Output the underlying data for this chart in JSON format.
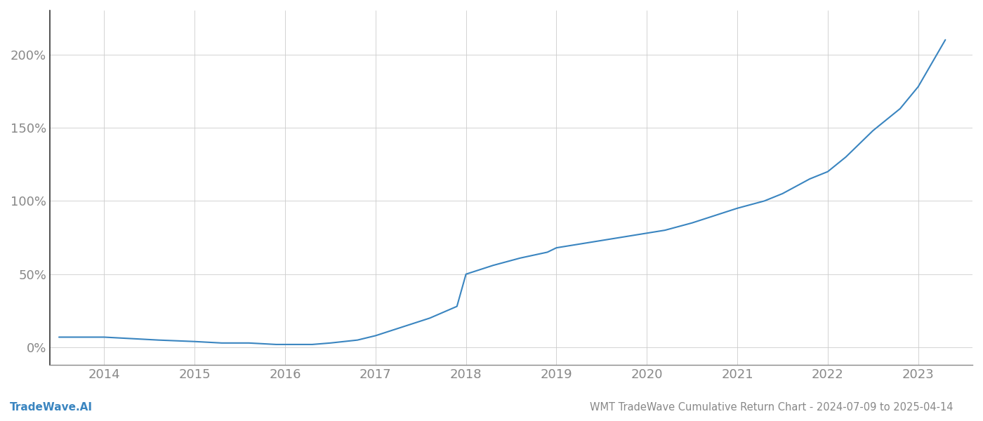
{
  "title": "WMT TradeWave Cumulative Return Chart - 2024-07-09 to 2025-04-14",
  "watermark": "TradeWave.AI",
  "line_color": "#3a85c0",
  "background_color": "#ffffff",
  "grid_color": "#cccccc",
  "text_color": "#888888",
  "x_years": [
    2014,
    2015,
    2016,
    2017,
    2018,
    2019,
    2020,
    2021,
    2022,
    2023
  ],
  "y_ticks": [
    0,
    50,
    100,
    150,
    200
  ],
  "ylim": [
    -12,
    230
  ],
  "xlim": [
    2013.4,
    2023.6
  ],
  "data_x": [
    2013.5,
    2013.8,
    2014.0,
    2014.3,
    2014.6,
    2015.0,
    2015.3,
    2015.6,
    2015.9,
    2016.0,
    2016.1,
    2016.3,
    2016.5,
    2016.8,
    2017.0,
    2017.3,
    2017.6,
    2017.9,
    2018.0,
    2018.3,
    2018.6,
    2018.9,
    2019.0,
    2019.2,
    2019.5,
    2019.8,
    2020.0,
    2020.2,
    2020.5,
    2020.8,
    2021.0,
    2021.3,
    2021.5,
    2021.8,
    2022.0,
    2022.2,
    2022.5,
    2022.8,
    2023.0,
    2023.3
  ],
  "data_y": [
    7,
    7,
    7,
    6,
    5,
    4,
    3,
    3,
    2,
    2,
    2,
    2,
    3,
    5,
    8,
    14,
    20,
    28,
    50,
    56,
    61,
    65,
    68,
    70,
    73,
    76,
    78,
    80,
    85,
    91,
    95,
    100,
    105,
    115,
    120,
    130,
    148,
    163,
    178,
    210
  ]
}
